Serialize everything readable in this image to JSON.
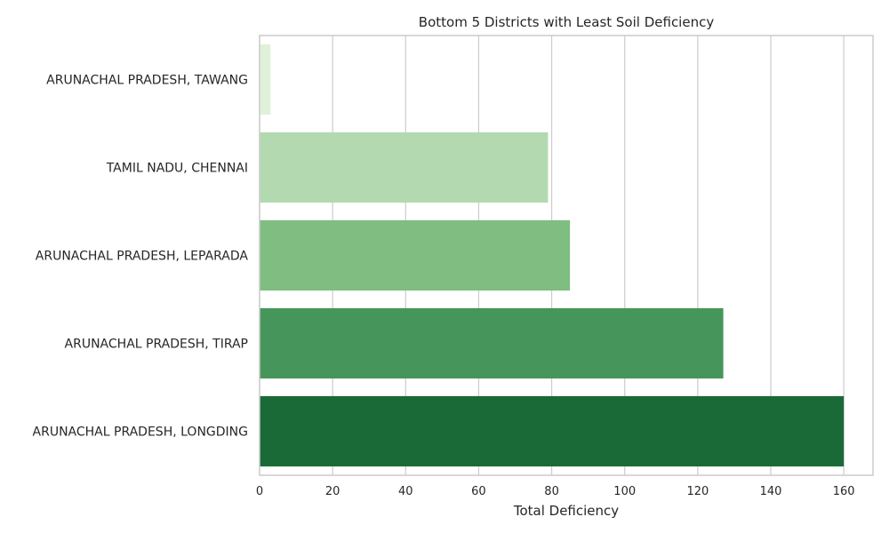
{
  "chart_data": {
    "type": "bar",
    "orientation": "horizontal",
    "title": "Bottom 5 Districts with Least Soil Deficiency",
    "xlabel": "Total Deficiency",
    "ylabel": "",
    "categories": [
      "ARUNACHAL PRADESH, TAWANG",
      "TAMIL NADU, CHENNAI",
      "ARUNACHAL PRADESH, LEPARADA",
      "ARUNACHAL PRADESH, TIRAP",
      "ARUNACHAL PRADESH, LONGDING"
    ],
    "values": [
      3,
      79,
      85,
      127,
      160
    ],
    "colors": [
      "#dff2d9",
      "#b3d9b1",
      "#7fbd80",
      "#46965b",
      "#1a6a37"
    ],
    "xlim": [
      0,
      168
    ],
    "xticks": [
      0,
      20,
      40,
      60,
      80,
      100,
      120,
      140,
      160
    ],
    "grid": true,
    "legend": "none"
  }
}
